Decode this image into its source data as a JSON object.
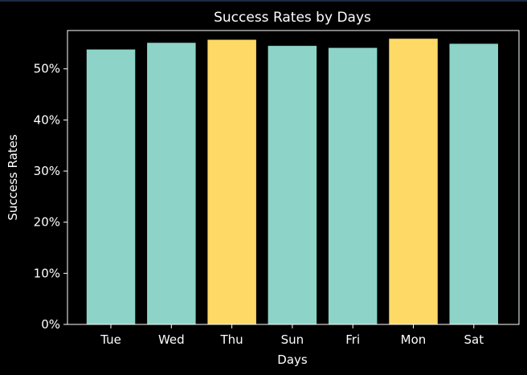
{
  "colors": {
    "background": "#000000",
    "axes": "#ffffff",
    "text": "#ffffff",
    "bar_default": "#8dd3c7",
    "bar_highlight": "#ffd966"
  },
  "chart_data": {
    "type": "bar",
    "title": "Success Rates by Days",
    "xlabel": "Days",
    "ylabel": "Success Rates",
    "categories": [
      "Tue",
      "Wed",
      "Thu",
      "Sun",
      "Fri",
      "Mon",
      "Sat"
    ],
    "values": [
      53.8,
      55.1,
      55.7,
      54.5,
      54.1,
      55.9,
      54.9
    ],
    "bar_colors": [
      "#8dd3c7",
      "#8dd3c7",
      "#ffd966",
      "#8dd3c7",
      "#8dd3c7",
      "#ffd966",
      "#8dd3c7"
    ],
    "ylim": [
      0,
      57.5
    ],
    "yticks": [
      0,
      10,
      20,
      30,
      40,
      50
    ],
    "ytick_labels": [
      "0%",
      "10%",
      "20%",
      "30%",
      "40%",
      "50%"
    ],
    "grid": false,
    "legend": false
  }
}
